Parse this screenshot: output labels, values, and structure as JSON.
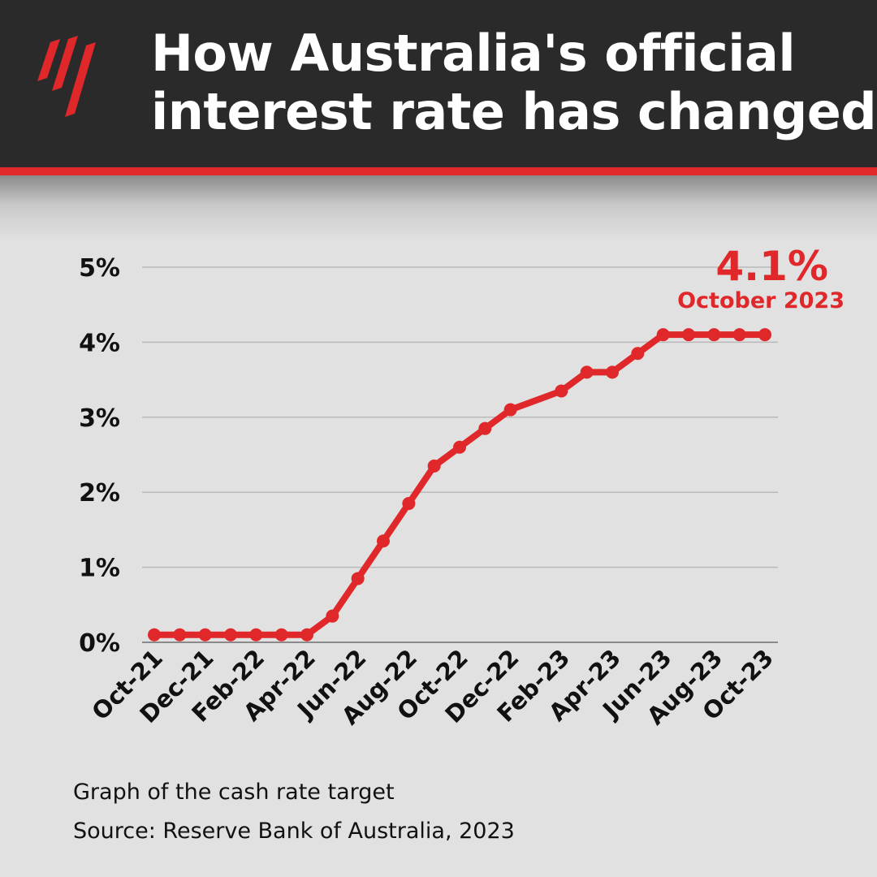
{
  "header": {
    "title_line1": "How Australia's official",
    "title_line2": "interest rate has changed",
    "logo_icon": "sbs-logo-icon",
    "background_color": "#2a2a2a",
    "accent_color": "#e0282b"
  },
  "chart_data": {
    "type": "line",
    "title": "",
    "xlabel": "",
    "ylabel": "",
    "ylim": [
      0,
      5
    ],
    "yticks": [
      0,
      1,
      2,
      3,
      4,
      5
    ],
    "ytick_labels": [
      "0%",
      "1%",
      "2%",
      "3%",
      "4%",
      "5%"
    ],
    "x": [
      "Oct-21",
      "Nov-21",
      "Dec-21",
      "Jan-22",
      "Feb-22",
      "Mar-22",
      "Apr-22",
      "May-22",
      "Jun-22",
      "Jul-22",
      "Aug-22",
      "Sep-22",
      "Oct-22",
      "Nov-22",
      "Dec-22",
      "Jan-23",
      "Feb-23",
      "Mar-23",
      "Apr-23",
      "May-23",
      "Jun-23",
      "Jul-23",
      "Aug-23",
      "Sep-23",
      "Oct-23"
    ],
    "xtick_labels": [
      "Oct-21",
      "Dec-21",
      "Feb-22",
      "Apr-22",
      "Jun-22",
      "Aug-22",
      "Oct-22",
      "Dec-22",
      "Feb-23",
      "Apr-23",
      "Jun-23",
      "Aug-23",
      "Oct-23"
    ],
    "series": [
      {
        "values": [
          0.1,
          0.1,
          0.1,
          0.1,
          0.1,
          0.1,
          0.1,
          0.35,
          0.85,
          1.35,
          1.85,
          2.35,
          2.6,
          2.85,
          3.1,
          null,
          3.35,
          3.6,
          3.6,
          3.85,
          4.1,
          4.1,
          4.1,
          4.1,
          4.1
        ],
        "color": "#e0282b"
      }
    ],
    "grid": true,
    "annotation": {
      "value": "4.1%",
      "label": "October 2023",
      "color": "#e0282b"
    }
  },
  "footer": {
    "caption": "Graph of the cash rate target",
    "source": "Source: Reserve Bank of Australia, 2023"
  }
}
